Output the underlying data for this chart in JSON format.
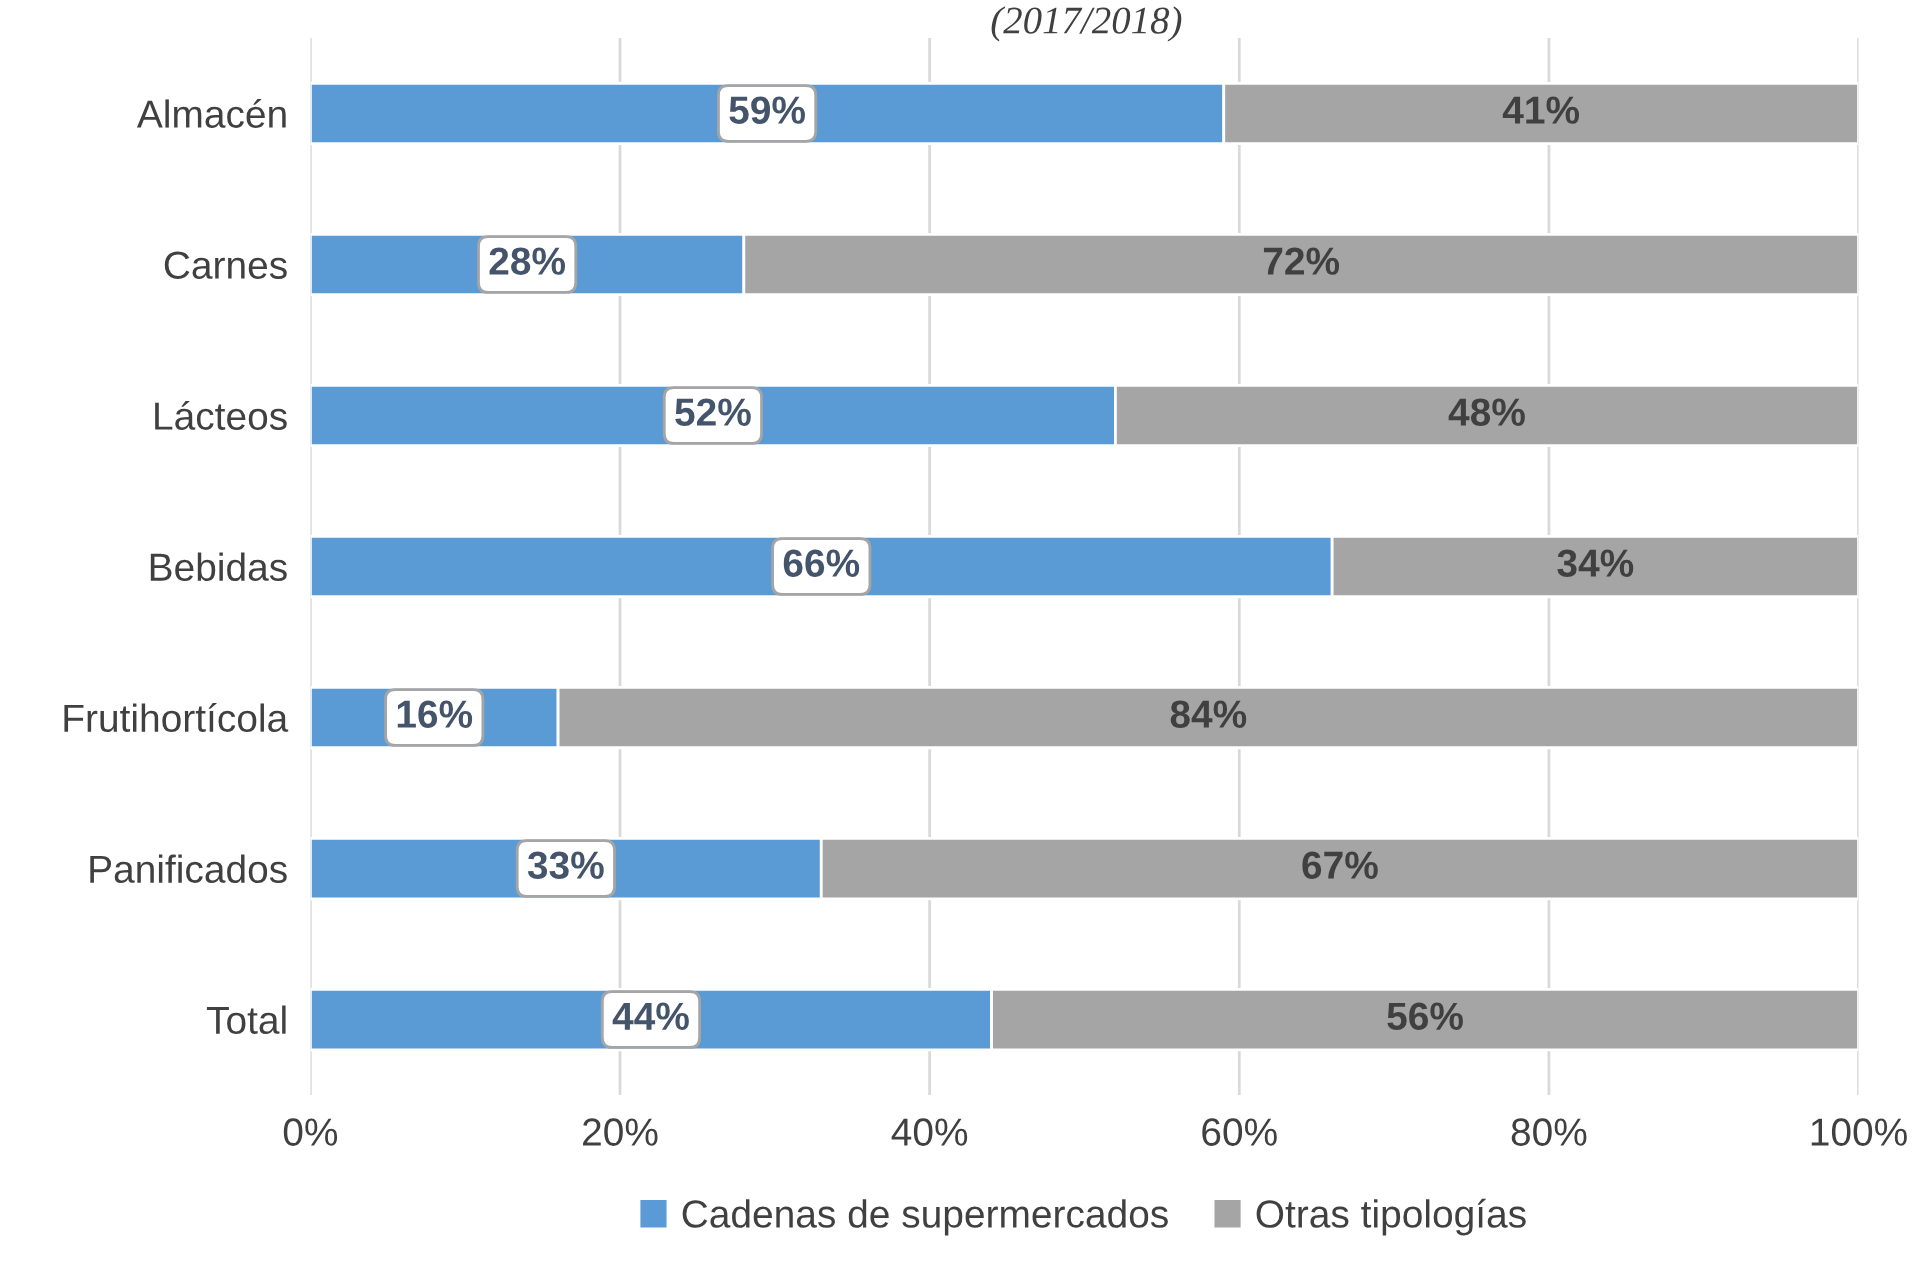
{
  "chart_data": {
    "type": "bar",
    "title": "(2017/2018)",
    "orientation": "horizontal",
    "stacked": true,
    "categories": [
      "Almacén",
      "Carnes",
      "Lácteos",
      "Bebidas",
      "Frutihortícola",
      "Panificados",
      "Total"
    ],
    "series": [
      {
        "name": "Cadenas de supermercados",
        "color": "#5b9bd5",
        "values": [
          59,
          28,
          52,
          66,
          16,
          33,
          44
        ],
        "value_labels": [
          "59%",
          "28%",
          "52%",
          "66%",
          "16%",
          "33%",
          "44%"
        ]
      },
      {
        "name": "Otras tipologías",
        "color": "#a5a5a5",
        "values": [
          41,
          72,
          48,
          34,
          84,
          67,
          56
        ],
        "value_labels": [
          "41%",
          "72%",
          "48%",
          "34%",
          "84%",
          "67%",
          "56%"
        ]
      }
    ],
    "xlim": [
      0,
      100
    ],
    "xticks": [
      {
        "value": 0,
        "label": "0%"
      },
      {
        "value": 20,
        "label": "20%"
      },
      {
        "value": 40,
        "label": "40%"
      },
      {
        "value": 60,
        "label": "60%"
      },
      {
        "value": 80,
        "label": "80%"
      },
      {
        "value": 100,
        "label": "100%"
      }
    ],
    "grid": "x",
    "legend": "bottom"
  }
}
